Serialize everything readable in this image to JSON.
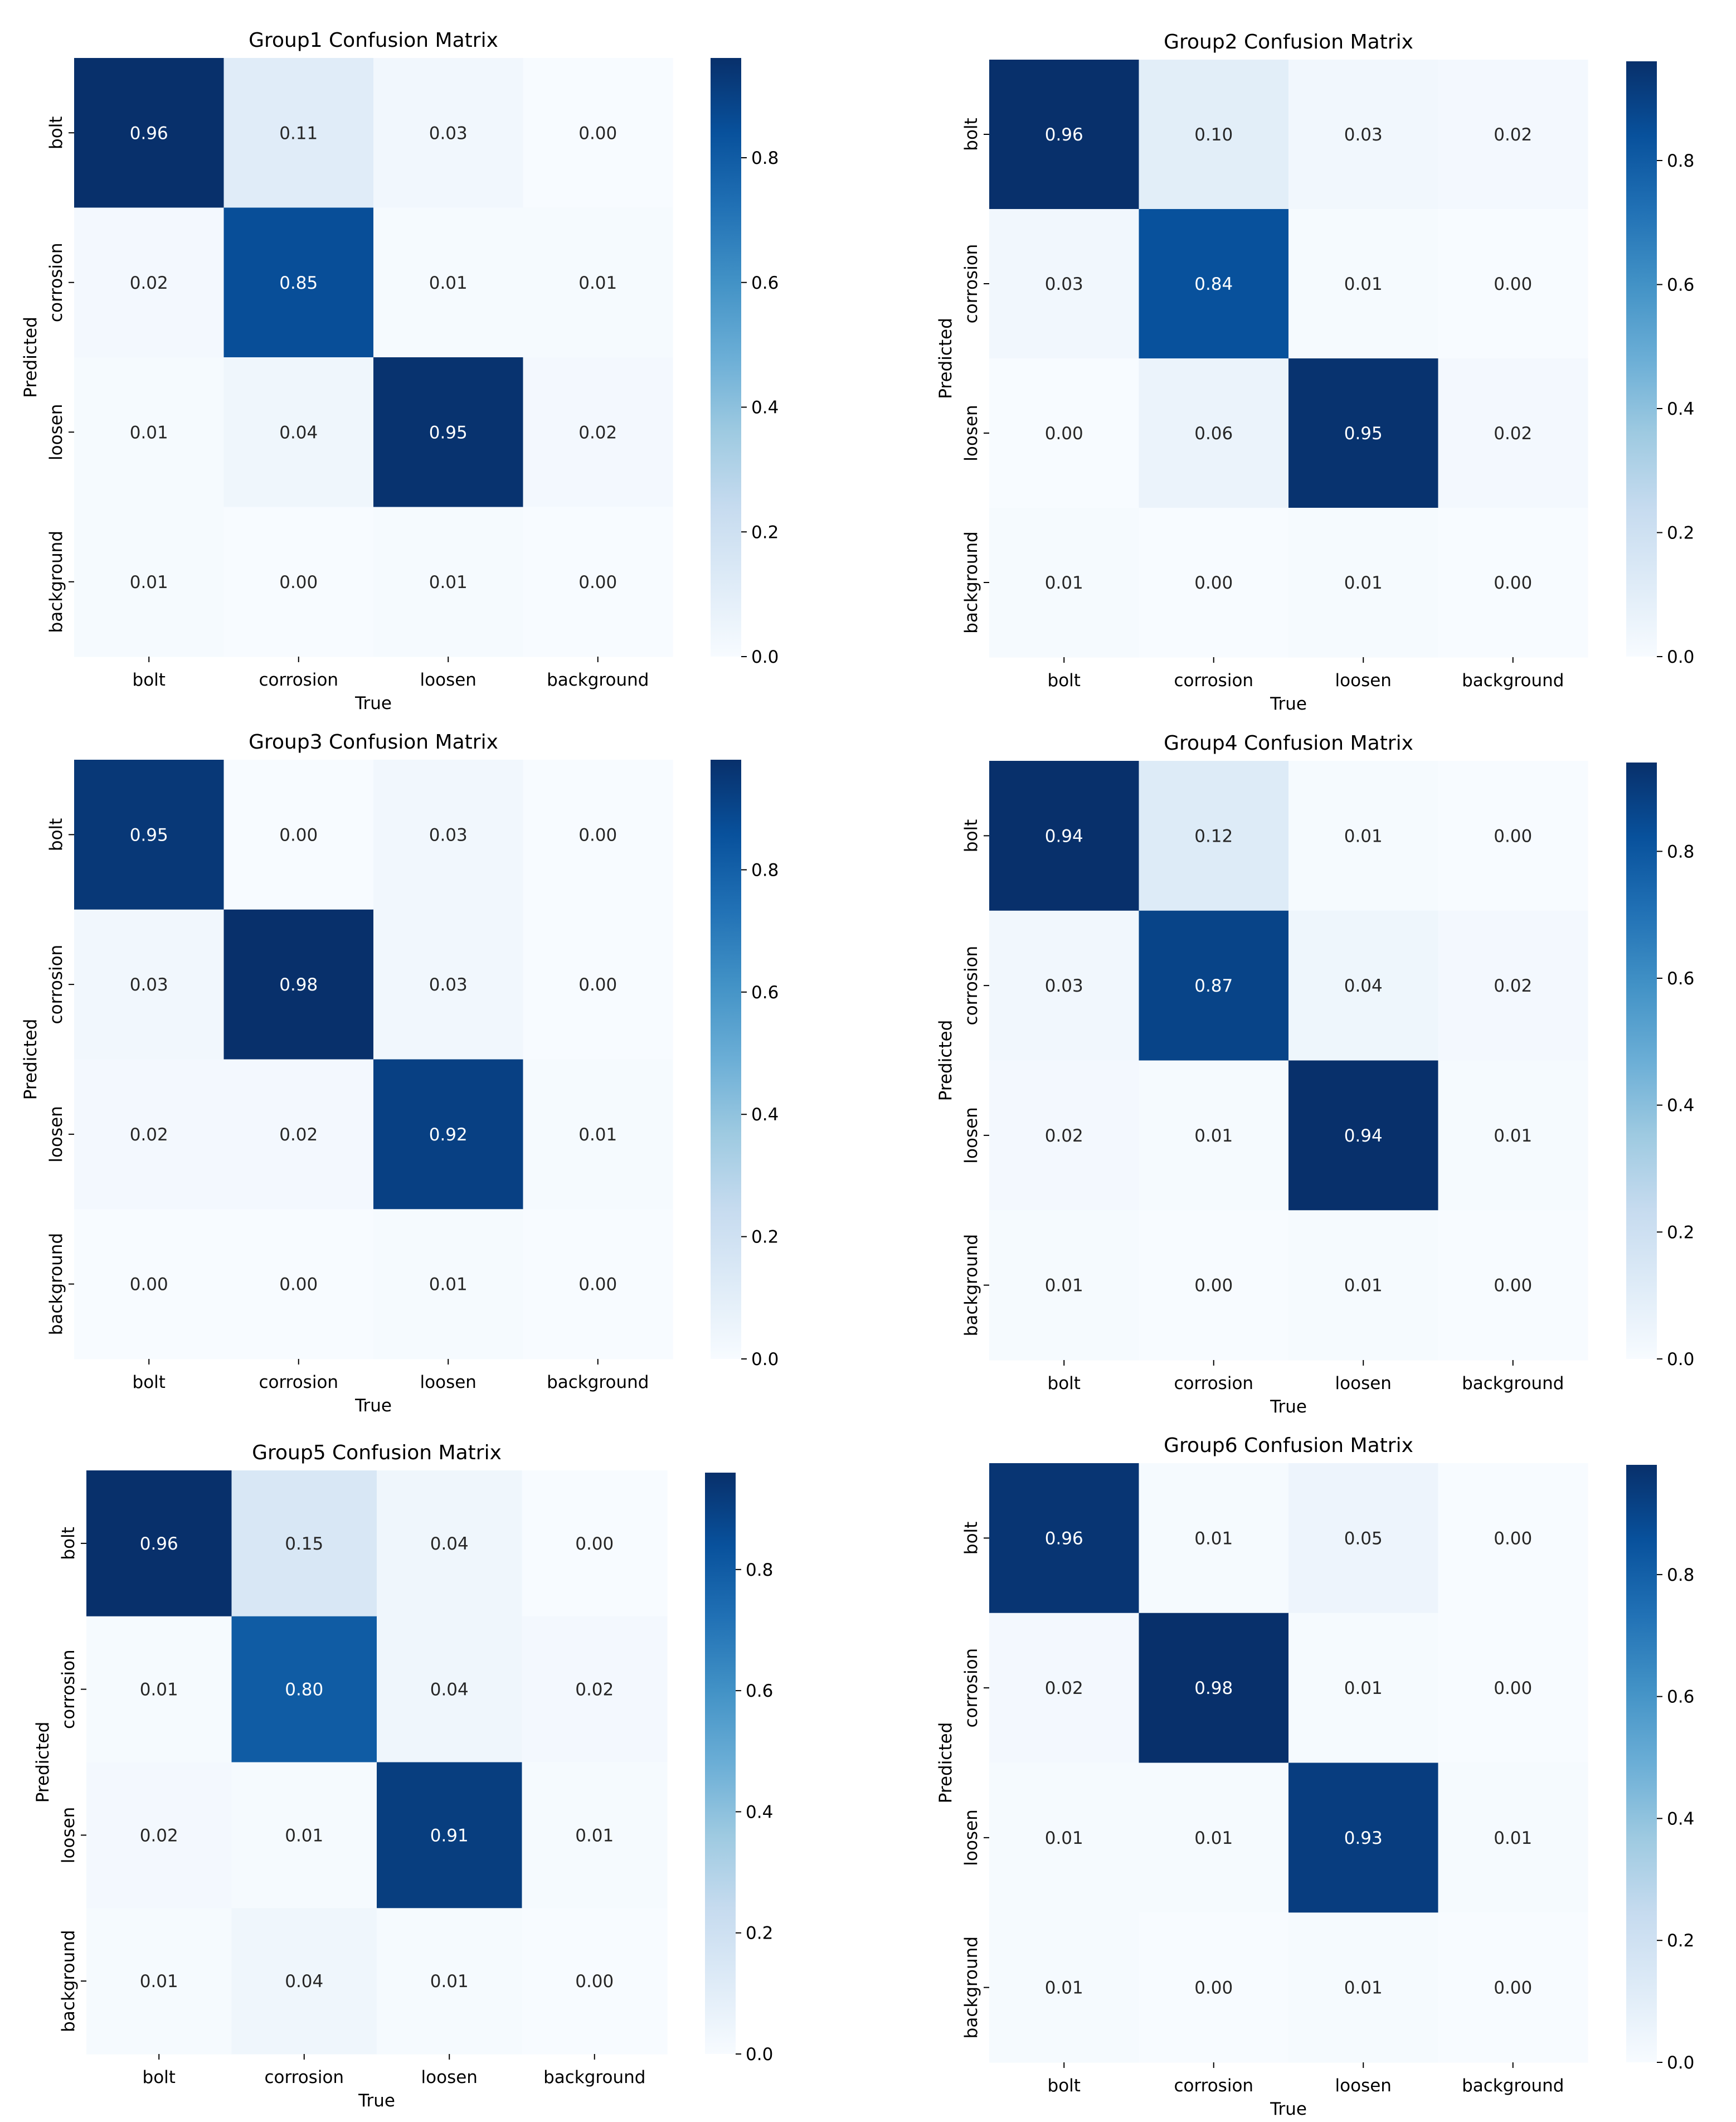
{
  "colors": {
    "scale": [
      "#f7fbff",
      "#deebf7",
      "#c6dbef",
      "#9ecae1",
      "#6baed6",
      "#4292c6",
      "#2171b5",
      "#08519c",
      "#08306b"
    ],
    "mid_anchor": "#00a6d6",
    "text_light": "#ffffff",
    "text_dark": "#262626",
    "axis": "#000000"
  },
  "chart_data": [
    {
      "type": "heatmap",
      "title": "Group1 Confusion Matrix",
      "xlabel": "True",
      "ylabel": "Predicted",
      "x_categories": [
        "bolt",
        "corrosion",
        "loosen",
        "background"
      ],
      "y_categories": [
        "bolt",
        "corrosion",
        "loosen",
        "background"
      ],
      "values": [
        [
          0.96,
          0.11,
          0.03,
          0.0
        ],
        [
          0.02,
          0.85,
          0.01,
          0.01
        ],
        [
          0.01,
          0.04,
          0.95,
          0.02
        ],
        [
          0.01,
          0.0,
          0.01,
          0.0
        ]
      ],
      "cell_labels": [
        [
          "0.96",
          "0.11",
          "0.03",
          "0.00"
        ],
        [
          "0.02",
          "0.85",
          "0.01",
          "0.01"
        ],
        [
          "0.01",
          "0.04",
          "0.95",
          "0.02"
        ],
        [
          "0.01",
          "0.00",
          "0.01",
          "0.00"
        ]
      ],
      "colorbar": {
        "range": [
          0,
          0.96
        ],
        "ticks": [
          0,
          0.2,
          0.4,
          0.6,
          0.8
        ],
        "tick_labels": [
          "0.0",
          "0.2",
          "0.4",
          "0.6",
          "0.8"
        ]
      }
    },
    {
      "type": "heatmap",
      "title": "Group2 Confusion Matrix",
      "xlabel": "True",
      "ylabel": "Predicted",
      "x_categories": [
        "bolt",
        "corrosion",
        "loosen",
        "background"
      ],
      "y_categories": [
        "bolt",
        "corrosion",
        "loosen",
        "background"
      ],
      "values": [
        [
          0.96,
          0.1,
          0.03,
          0.02
        ],
        [
          0.03,
          0.84,
          0.01,
          0.0
        ],
        [
          0.0,
          0.06,
          0.95,
          0.02
        ],
        [
          0.01,
          0.0,
          0.01,
          0.0
        ]
      ],
      "cell_labels": [
        [
          "0.96",
          "0.10",
          "0.03",
          "0.02"
        ],
        [
          "0.03",
          "0.84",
          "0.01",
          "0.00"
        ],
        [
          "0.00",
          "0.06",
          "0.95",
          "0.02"
        ],
        [
          "0.01",
          "0.00",
          "0.01",
          "0.00"
        ]
      ],
      "colorbar": {
        "range": [
          0,
          0.96
        ],
        "ticks": [
          0,
          0.2,
          0.4,
          0.6,
          0.8
        ],
        "tick_labels": [
          "0.0",
          "0.2",
          "0.4",
          "0.6",
          "0.8"
        ]
      }
    },
    {
      "type": "heatmap",
      "title": "Group3 Confusion Matrix",
      "xlabel": "True",
      "ylabel": "Predicted",
      "x_categories": [
        "bolt",
        "corrosion",
        "loosen",
        "background"
      ],
      "y_categories": [
        "bolt",
        "corrosion",
        "loosen",
        "background"
      ],
      "values": [
        [
          0.95,
          0.0,
          0.03,
          0.0
        ],
        [
          0.03,
          0.98,
          0.03,
          0.0
        ],
        [
          0.02,
          0.02,
          0.92,
          0.01
        ],
        [
          0.0,
          0.0,
          0.01,
          0.0
        ]
      ],
      "cell_labels": [
        [
          "0.95",
          "0.00",
          "0.03",
          "0.00"
        ],
        [
          "0.03",
          "0.98",
          "0.03",
          "0.00"
        ],
        [
          "0.02",
          "0.02",
          "0.92",
          "0.01"
        ],
        [
          "0.00",
          "0.00",
          "0.01",
          "0.00"
        ]
      ],
      "colorbar": {
        "range": [
          0,
          0.98
        ],
        "ticks": [
          0,
          0.2,
          0.4,
          0.6,
          0.8
        ],
        "tick_labels": [
          "0.0",
          "0.2",
          "0.4",
          "0.6",
          "0.8"
        ]
      }
    },
    {
      "type": "heatmap",
      "title": "Group4 Confusion Matrix",
      "xlabel": "True",
      "ylabel": "Predicted",
      "x_categories": [
        "bolt",
        "corrosion",
        "loosen",
        "background"
      ],
      "y_categories": [
        "bolt",
        "corrosion",
        "loosen",
        "background"
      ],
      "values": [
        [
          0.94,
          0.12,
          0.01,
          0.0
        ],
        [
          0.03,
          0.87,
          0.04,
          0.02
        ],
        [
          0.02,
          0.01,
          0.94,
          0.01
        ],
        [
          0.01,
          0.0,
          0.01,
          0.0
        ]
      ],
      "cell_labels": [
        [
          "0.94",
          "0.12",
          "0.01",
          "0.00"
        ],
        [
          "0.03",
          "0.87",
          "0.04",
          "0.02"
        ],
        [
          "0.02",
          "0.01",
          "0.94",
          "0.01"
        ],
        [
          "0.01",
          "0.00",
          "0.01",
          "0.00"
        ]
      ],
      "colorbar": {
        "range": [
          0,
          0.94
        ],
        "ticks": [
          0,
          0.2,
          0.4,
          0.6,
          0.8
        ],
        "tick_labels": [
          "0.0",
          "0.2",
          "0.4",
          "0.6",
          "0.8"
        ]
      }
    },
    {
      "type": "heatmap",
      "title": "Group5 Confusion Matrix",
      "xlabel": "True",
      "ylabel": "Predicted",
      "x_categories": [
        "bolt",
        "corrosion",
        "loosen",
        "background"
      ],
      "y_categories": [
        "bolt",
        "corrosion",
        "loosen",
        "background"
      ],
      "values": [
        [
          0.96,
          0.15,
          0.04,
          0.0
        ],
        [
          0.01,
          0.8,
          0.04,
          0.02
        ],
        [
          0.02,
          0.01,
          0.91,
          0.01
        ],
        [
          0.01,
          0.04,
          0.01,
          0.0
        ]
      ],
      "cell_labels": [
        [
          "0.96",
          "0.15",
          "0.04",
          "0.00"
        ],
        [
          "0.01",
          "0.80",
          "0.04",
          "0.02"
        ],
        [
          "0.02",
          "0.01",
          "0.91",
          "0.01"
        ],
        [
          "0.01",
          "0.04",
          "0.01",
          "0.00"
        ]
      ],
      "colorbar": {
        "range": [
          0,
          0.96
        ],
        "ticks": [
          0,
          0.2,
          0.4,
          0.6,
          0.8
        ],
        "tick_labels": [
          "0.0",
          "0.2",
          "0.4",
          "0.6",
          "0.8"
        ]
      }
    },
    {
      "type": "heatmap",
      "title": "Group6 Confusion Matrix",
      "xlabel": "True",
      "ylabel": "Predicted",
      "x_categories": [
        "bolt",
        "corrosion",
        "loosen",
        "background"
      ],
      "y_categories": [
        "bolt",
        "corrosion",
        "loosen",
        "background"
      ],
      "values": [
        [
          0.96,
          0.01,
          0.05,
          0.0
        ],
        [
          0.02,
          0.98,
          0.01,
          0.0
        ],
        [
          0.01,
          0.01,
          0.93,
          0.01
        ],
        [
          0.01,
          0.0,
          0.01,
          0.0
        ]
      ],
      "cell_labels": [
        [
          "0.96",
          "0.01",
          "0.05",
          "0.00"
        ],
        [
          "0.02",
          "0.98",
          "0.01",
          "0.00"
        ],
        [
          "0.01",
          "0.01",
          "0.93",
          "0.01"
        ],
        [
          "0.01",
          "0.00",
          "0.01",
          "0.00"
        ]
      ],
      "colorbar": {
        "range": [
          0,
          0.98
        ],
        "ticks": [
          0,
          0.2,
          0.4,
          0.6,
          0.8
        ],
        "tick_labels": [
          "0.0",
          "0.2",
          "0.4",
          "0.6",
          "0.8"
        ]
      }
    }
  ]
}
